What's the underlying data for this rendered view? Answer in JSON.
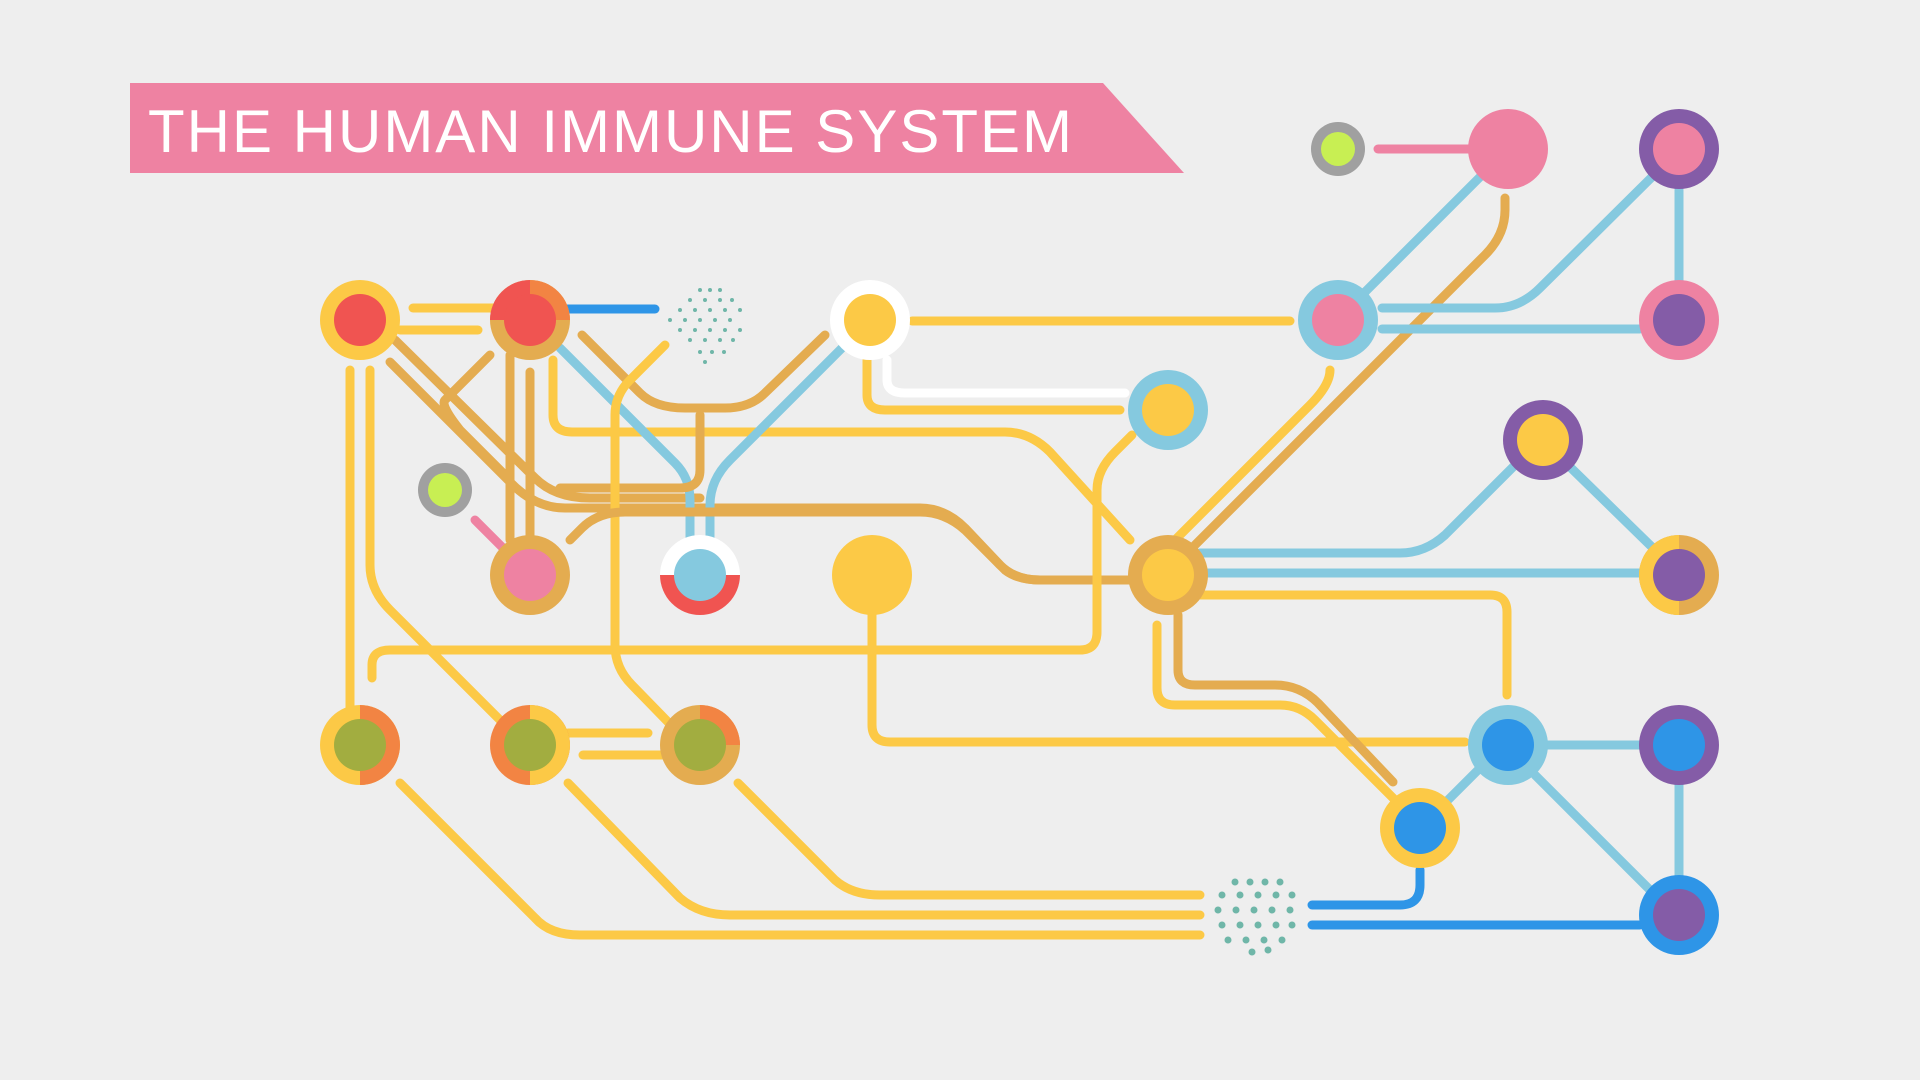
{
  "title": "THE HUMAN IMMUNE SYSTEM",
  "colors": {
    "background": "#eeeeee",
    "banner": "#ee82a2",
    "yellow": "#fcc946",
    "gold": "#e4ac50",
    "lightblue": "#85c9df",
    "blue": "#2e95e7",
    "pink": "#ee82a2",
    "purple": "#845ca7",
    "red": "#f05451",
    "orange": "#f28443",
    "olive": "#a2ad40",
    "lime": "#c8ef53",
    "gray": "#a0a0a0",
    "white": "#ffffff",
    "teal": "#6fb6a8"
  }
}
